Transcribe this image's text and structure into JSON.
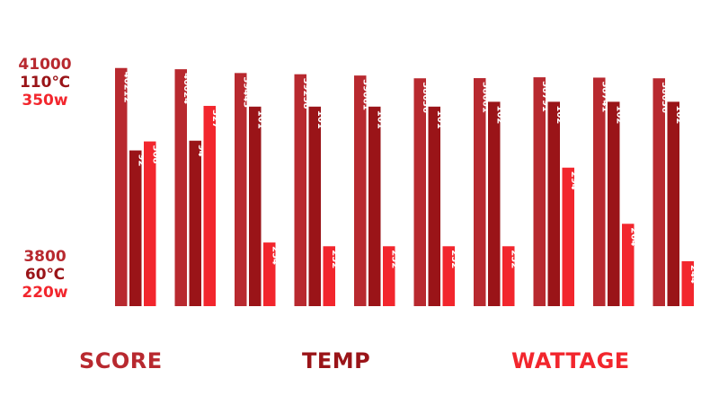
{
  "colors": {
    "score": "#B8292F",
    "temp": "#9A1418",
    "wattage": "#F2262D"
  },
  "axis_top": {
    "score": "41000",
    "temp": "110℃",
    "wattage": "350w"
  },
  "axis_bottom": {
    "score": "3800",
    "temp": "60℃",
    "wattage": "220w"
  },
  "legend": {
    "score": "SCORE",
    "temp": "TEMP",
    "wattage": "WATTAGE"
  },
  "chart_data": {
    "type": "bar",
    "categories": [
      "",
      "",
      "",
      "",
      "",
      "",
      "",
      "",
      "",
      ""
    ],
    "series": [
      {
        "name": "SCORE",
        "values": [
          40212,
          40024,
          39443,
          39258,
          39061,
          38636,
          38661,
          38791,
          38741,
          38636
        ],
        "ylim": [
          3800,
          41000
        ]
      },
      {
        "name": "TEMP",
        "values": [
          92,
          94,
          101,
          101,
          101,
          101,
          102,
          102,
          102,
          102
        ],
        "ylim": [
          60,
          110
        ]
      },
      {
        "name": "WATTAGE",
        "values": [
          308,
          327,
          254,
          252,
          252,
          252,
          252,
          294,
          264,
          244
        ],
        "ylim": [
          220,
          350
        ]
      }
    ]
  }
}
